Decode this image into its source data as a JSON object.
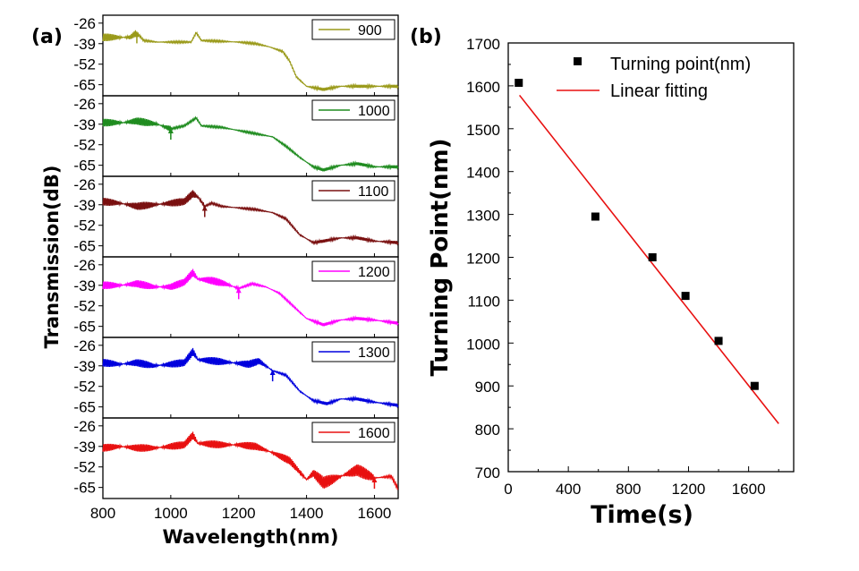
{
  "chart_data": [
    {
      "type": "line",
      "panel_label": "(a)",
      "xlabel": "Wavelength(nm)",
      "ylabel": "Transmission(dB)",
      "xlim": [
        800,
        1670
      ],
      "ylim": [
        -72,
        -21
      ],
      "x_ticks": [
        "800",
        "1000",
        "1200",
        "1400",
        "1600"
      ],
      "y_ticks": [
        "-26",
        "-39",
        "-52",
        "-65"
      ],
      "series": [
        {
          "name": "900",
          "color": "#9a9a1a",
          "turning_point": 900,
          "values": [
            [
              800,
              -35
            ],
            [
              880,
              -35
            ],
            [
              900,
              -32
            ],
            [
              920,
              -37
            ],
            [
              960,
              -38
            ],
            [
              1060,
              -38
            ],
            [
              1075,
              -32
            ],
            [
              1090,
              -37
            ],
            [
              1200,
              -38
            ],
            [
              1250,
              -39
            ],
            [
              1290,
              -41
            ],
            [
              1330,
              -44
            ],
            [
              1350,
              -50
            ],
            [
              1370,
              -60
            ],
            [
              1400,
              -66
            ],
            [
              1450,
              -68
            ],
            [
              1500,
              -66
            ],
            [
              1550,
              -66
            ],
            [
              1600,
              -66
            ],
            [
              1670,
              -66
            ]
          ]
        },
        {
          "name": "1000",
          "color": "#1f8c1f",
          "turning_point": 1000,
          "values": [
            [
              800,
              -38
            ],
            [
              860,
              -38
            ],
            [
              900,
              -37
            ],
            [
              960,
              -39
            ],
            [
              1000,
              -42
            ],
            [
              1040,
              -40
            ],
            [
              1075,
              -35
            ],
            [
              1090,
              -40
            ],
            [
              1150,
              -41
            ],
            [
              1200,
              -43
            ],
            [
              1250,
              -45
            ],
            [
              1300,
              -47
            ],
            [
              1340,
              -53
            ],
            [
              1380,
              -60
            ],
            [
              1420,
              -66
            ],
            [
              1450,
              -68
            ],
            [
              1500,
              -65
            ],
            [
              1550,
              -64
            ],
            [
              1600,
              -66
            ],
            [
              1670,
              -66
            ]
          ]
        },
        {
          "name": "1100",
          "color": "#7a1010",
          "turning_point": 1100,
          "values": [
            [
              800,
              -37
            ],
            [
              850,
              -38
            ],
            [
              900,
              -40
            ],
            [
              950,
              -39
            ],
            [
              1000,
              -38
            ],
            [
              1040,
              -37
            ],
            [
              1065,
              -32
            ],
            [
              1080,
              -34
            ],
            [
              1100,
              -40
            ],
            [
              1120,
              -38
            ],
            [
              1150,
              -40
            ],
            [
              1200,
              -41
            ],
            [
              1250,
              -42
            ],
            [
              1300,
              -44
            ],
            [
              1340,
              -48
            ],
            [
              1380,
              -58
            ],
            [
              1420,
              -63
            ],
            [
              1450,
              -62
            ],
            [
              1500,
              -60
            ],
            [
              1550,
              -60
            ],
            [
              1600,
              -62
            ],
            [
              1670,
              -63
            ]
          ]
        },
        {
          "name": "1200",
          "color": "#ff00ff",
          "turning_point": 1200,
          "values": [
            [
              800,
              -39
            ],
            [
              850,
              -39
            ],
            [
              900,
              -38
            ],
            [
              950,
              -40
            ],
            [
              1000,
              -40
            ],
            [
              1040,
              -37
            ],
            [
              1065,
              -31
            ],
            [
              1080,
              -35
            ],
            [
              1120,
              -36
            ],
            [
              1160,
              -38
            ],
            [
              1200,
              -41
            ],
            [
              1240,
              -38
            ],
            [
              1280,
              -40
            ],
            [
              1320,
              -44
            ],
            [
              1360,
              -52
            ],
            [
              1400,
              -60
            ],
            [
              1450,
              -64
            ],
            [
              1500,
              -61
            ],
            [
              1550,
              -60
            ],
            [
              1600,
              -61
            ],
            [
              1670,
              -63
            ]
          ]
        },
        {
          "name": "1300",
          "color": "#0000dd",
          "turning_point": 1300,
          "values": [
            [
              800,
              -37
            ],
            [
              850,
              -38
            ],
            [
              900,
              -37
            ],
            [
              950,
              -39
            ],
            [
              1000,
              -38
            ],
            [
              1040,
              -37
            ],
            [
              1065,
              -30
            ],
            [
              1080,
              -35
            ],
            [
              1130,
              -36
            ],
            [
              1180,
              -37
            ],
            [
              1230,
              -38
            ],
            [
              1260,
              -36
            ],
            [
              1300,
              -42
            ],
            [
              1340,
              -45
            ],
            [
              1380,
              -55
            ],
            [
              1420,
              -61
            ],
            [
              1460,
              -63
            ],
            [
              1500,
              -60
            ],
            [
              1550,
              -60
            ],
            [
              1600,
              -62
            ],
            [
              1670,
              -64
            ]
          ]
        },
        {
          "name": "1600",
          "color": "#e81010",
          "turning_point": 1600,
          "values": [
            [
              800,
              -40
            ],
            [
              850,
              -39
            ],
            [
              900,
              -40
            ],
            [
              950,
              -40
            ],
            [
              1000,
              -39
            ],
            [
              1040,
              -38
            ],
            [
              1065,
              -32
            ],
            [
              1080,
              -37
            ],
            [
              1150,
              -38
            ],
            [
              1200,
              -38
            ],
            [
              1250,
              -39
            ],
            [
              1300,
              -43
            ],
            [
              1350,
              -48
            ],
            [
              1400,
              -60
            ],
            [
              1420,
              -56
            ],
            [
              1450,
              -62
            ],
            [
              1500,
              -58
            ],
            [
              1550,
              -54
            ],
            [
              1600,
              -59
            ],
            [
              1650,
              -58
            ],
            [
              1670,
              -66
            ]
          ]
        }
      ]
    },
    {
      "type": "scatter",
      "panel_label": "(b)",
      "xlabel": "Time(s)",
      "ylabel": "Turning Point(nm)",
      "xlim": [
        0,
        1900
      ],
      "ylim": [
        700,
        1700
      ],
      "x_ticks": [
        "0",
        "400",
        "800",
        "1200",
        "1600"
      ],
      "y_ticks": [
        "700",
        "800",
        "900",
        "1000",
        "1100",
        "1200",
        "1300",
        "1400",
        "1500",
        "1600",
        "1700"
      ],
      "series": [
        {
          "name": "Turning point(nm)",
          "color": "#000000",
          "points": [
            [
              70,
              1607
            ],
            [
              580,
              1295
            ],
            [
              960,
              1200
            ],
            [
              1180,
              1110
            ],
            [
              1400,
              1005
            ],
            [
              1640,
              900
            ]
          ]
        },
        {
          "name": "Linear fitting",
          "color": "#e81010",
          "line": [
            [
              75,
              1578
            ],
            [
              1800,
              812
            ]
          ]
        }
      ]
    }
  ]
}
